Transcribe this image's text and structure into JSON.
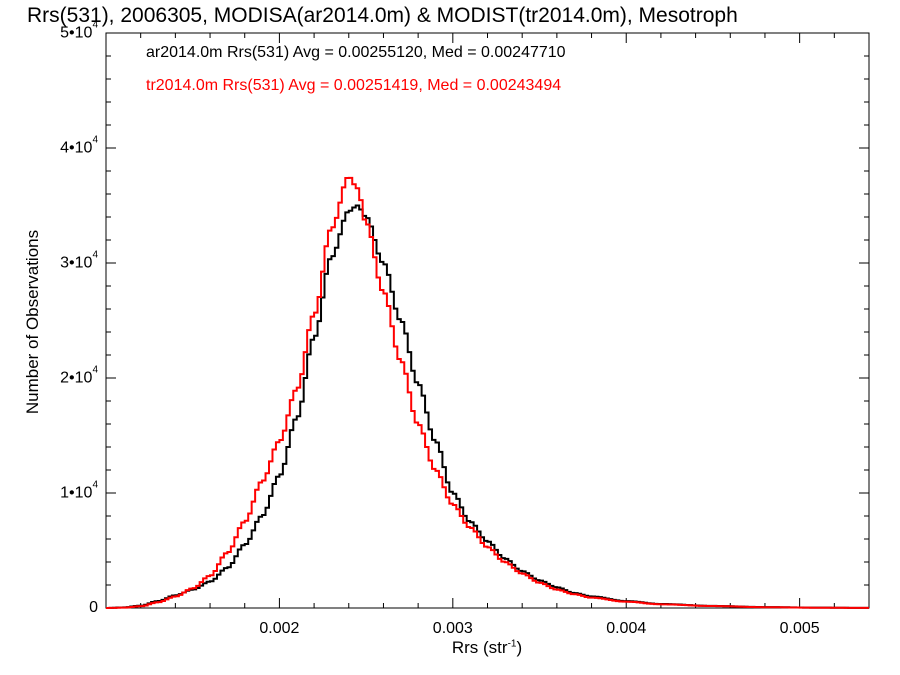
{
  "chart_data": {
    "type": "step-histogram",
    "title": "Rrs(531), 2006305, MODISA(ar2014.0m) & MODIST(tr2014.0m), Mesotroph",
    "xlabel": {
      "text": "Rrs (str",
      "sup": "-1",
      "close": ")"
    },
    "ylabel": "Number of Observations",
    "xlim": [
      0.001,
      0.0054
    ],
    "ylim": [
      0,
      50000
    ],
    "x_ticks": [
      {
        "value": 0.002,
        "label": "0.002"
      },
      {
        "value": 0.003,
        "label": "0.003"
      },
      {
        "value": 0.004,
        "label": "0.004"
      },
      {
        "value": 0.005,
        "label": "0.005"
      }
    ],
    "y_ticks": [
      {
        "value": 0,
        "label": "0",
        "exp": ""
      },
      {
        "value": 10000,
        "label": "1•10",
        "exp": "4"
      },
      {
        "value": 20000,
        "label": "2•10",
        "exp": "4"
      },
      {
        "value": 30000,
        "label": "3•10",
        "exp": "4"
      },
      {
        "value": 40000,
        "label": "4•10",
        "exp": "4"
      },
      {
        "value": 50000,
        "label": "5•10",
        "exp": "4"
      }
    ],
    "bin_width": 2e-05,
    "series": [
      {
        "name": "ar2014.0m",
        "color": "#000000",
        "legend": "ar2014.0m Rrs(531) Avg = 0.00255120, Med = 0.00247710",
        "points": [
          [
            0.001,
            0
          ],
          [
            0.0011,
            50
          ],
          [
            0.0012,
            200
          ],
          [
            0.0013,
            600
          ],
          [
            0.0014,
            1100
          ],
          [
            0.0015,
            1600
          ],
          [
            0.0016,
            2300
          ],
          [
            0.0017,
            3500
          ],
          [
            0.0018,
            5500
          ],
          [
            0.0019,
            8000
          ],
          [
            0.002,
            11500
          ],
          [
            0.0021,
            16500
          ],
          [
            0.0022,
            23500
          ],
          [
            0.0023,
            30500
          ],
          [
            0.0024,
            34500
          ],
          [
            0.00245,
            35000
          ],
          [
            0.0025,
            34000
          ],
          [
            0.0026,
            30000
          ],
          [
            0.0027,
            25000
          ],
          [
            0.0028,
            19500
          ],
          [
            0.0029,
            14500
          ],
          [
            0.003,
            10000
          ],
          [
            0.0031,
            7500
          ],
          [
            0.0032,
            5800
          ],
          [
            0.0033,
            4300
          ],
          [
            0.0034,
            3200
          ],
          [
            0.0035,
            2400
          ],
          [
            0.0036,
            1800
          ],
          [
            0.0037,
            1300
          ],
          [
            0.0038,
            1000
          ],
          [
            0.004,
            600
          ],
          [
            0.0042,
            350
          ],
          [
            0.0045,
            180
          ],
          [
            0.0048,
            80
          ],
          [
            0.0051,
            30
          ],
          [
            0.0054,
            10
          ]
        ]
      },
      {
        "name": "tr2014.0m",
        "color": "#ff0000",
        "legend": "tr2014.0m Rrs(531) Avg = 0.00251419, Med = 0.00243494",
        "points": [
          [
            0.001,
            0
          ],
          [
            0.0011,
            30
          ],
          [
            0.0012,
            150
          ],
          [
            0.0013,
            500
          ],
          [
            0.0014,
            1000
          ],
          [
            0.0015,
            1700
          ],
          [
            0.0016,
            2800
          ],
          [
            0.0017,
            4800
          ],
          [
            0.0018,
            7500
          ],
          [
            0.0019,
            11000
          ],
          [
            0.002,
            14500
          ],
          [
            0.0021,
            19000
          ],
          [
            0.0022,
            25500
          ],
          [
            0.0023,
            33000
          ],
          [
            0.0024,
            37500
          ],
          [
            0.00245,
            36500
          ],
          [
            0.0025,
            33500
          ],
          [
            0.0026,
            27500
          ],
          [
            0.0027,
            21500
          ],
          [
            0.0028,
            16000
          ],
          [
            0.0029,
            12000
          ],
          [
            0.003,
            9000
          ],
          [
            0.0031,
            7000
          ],
          [
            0.0032,
            5300
          ],
          [
            0.0033,
            4000
          ],
          [
            0.0034,
            3000
          ],
          [
            0.0035,
            2200
          ],
          [
            0.0036,
            1600
          ],
          [
            0.0037,
            1200
          ],
          [
            0.0038,
            900
          ],
          [
            0.004,
            550
          ],
          [
            0.0042,
            320
          ],
          [
            0.0045,
            170
          ],
          [
            0.0048,
            70
          ],
          [
            0.0051,
            25
          ],
          [
            0.0054,
            10
          ]
        ]
      }
    ]
  }
}
